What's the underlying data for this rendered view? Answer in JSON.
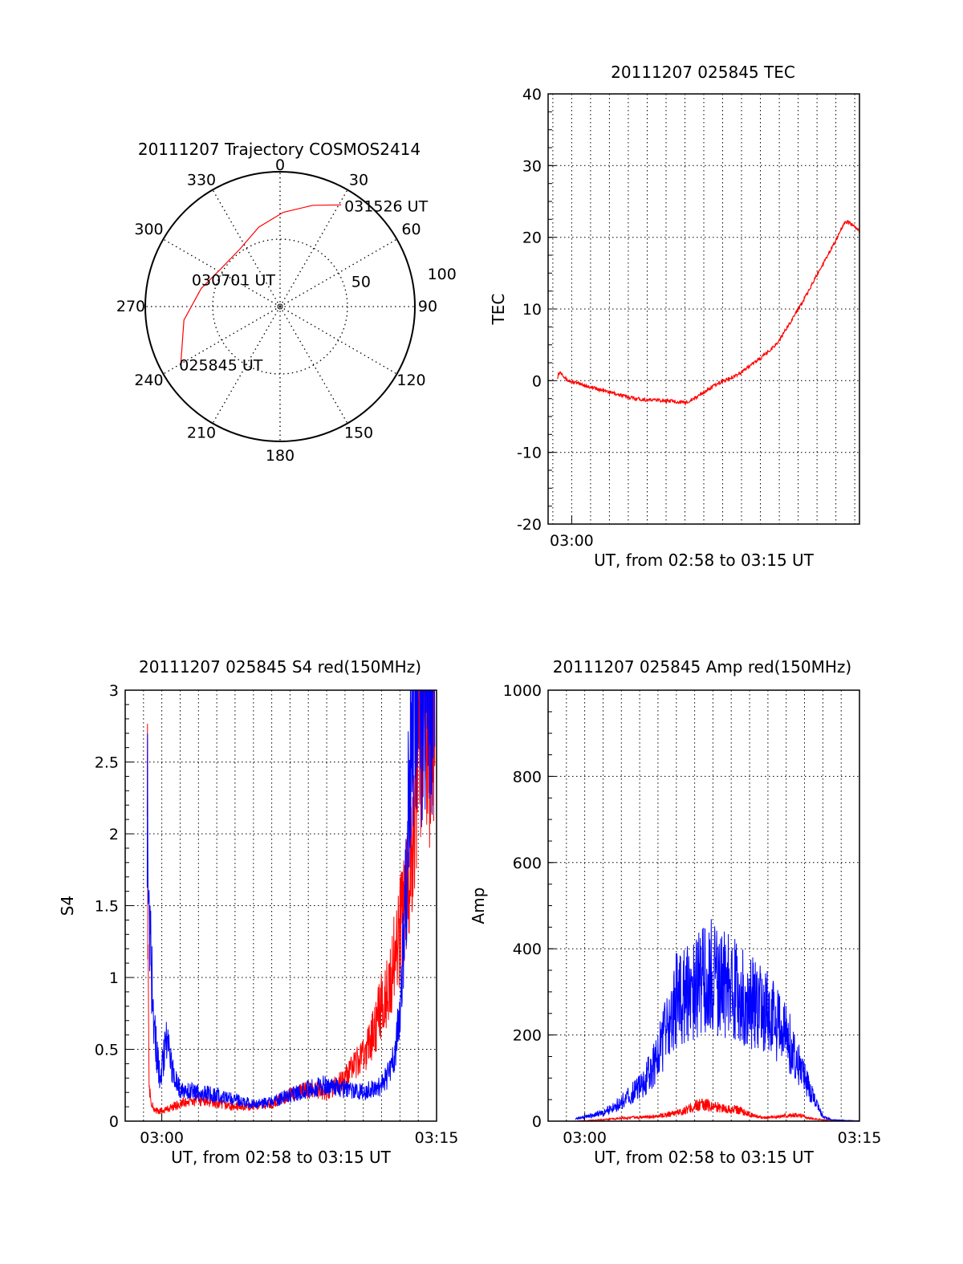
{
  "colors": {
    "series_a": "#ff0000",
    "series_b": "#0000ff",
    "grid": "#000000"
  },
  "chart_data": [
    {
      "type": "polar",
      "title": "20111207 Trajectory COSMOS2414",
      "azimuth_labels": [
        "0",
        "30",
        "60",
        "90",
        "120",
        "150",
        "180",
        "210",
        "240",
        "270",
        "300",
        "330"
      ],
      "ring_labels": [
        "50",
        "100"
      ],
      "grid": true,
      "annotations": [
        "031526 UT",
        "030701 UT",
        "025845 UT"
      ],
      "series": [
        {
          "color": "#ff0000",
          "points": [
            {
              "az": 240,
              "r": 85
            },
            {
              "az": 262,
              "r": 72
            },
            {
              "az": 283,
              "r": 60
            },
            {
              "az": 303,
              "r": 52
            },
            {
              "az": 325,
              "r": 52
            },
            {
              "az": 345,
              "r": 61
            },
            {
              "az": 2,
              "r": 70
            },
            {
              "az": 18,
              "r": 79
            },
            {
              "az": 31,
              "r": 88
            }
          ]
        }
      ]
    },
    {
      "type": "line",
      "title": "20111207 025845 TEC",
      "xlabel": "UT, from 02:58 to 03:15 UT",
      "ylabel": "TEC",
      "xlim": [
        -1.25,
        15.25
      ],
      "ylim": [
        -20,
        40
      ],
      "y_ticks": [
        "-20",
        "-10",
        "0",
        "10",
        "20",
        "30",
        "40"
      ],
      "x_ticks": [
        {
          "value": 0,
          "label": "03:00"
        }
      ],
      "grid": true,
      "series": [
        {
          "color": "#ff0000",
          "x": [
            -0.75,
            -0.7,
            -0.6,
            -0.5,
            -0.4,
            -0.3,
            -0.2,
            0.5,
            1,
            2,
            3,
            4,
            4.5,
            5,
            5.5,
            6,
            6.5,
            7,
            7.5,
            8,
            8.5,
            9,
            9.5,
            10,
            10.5,
            11,
            11.5,
            12,
            12.5,
            13,
            13.5,
            14,
            14.5,
            15,
            15.25
          ],
          "y": [
            0.5,
            1,
            1.2,
            1.0,
            0.6,
            0.2,
            0,
            -0.5,
            -0.9,
            -1.6,
            -2.3,
            -2.7,
            -2.7,
            -2.8,
            -2.9,
            -3.1,
            -2.5,
            -1.6,
            -0.8,
            -0.1,
            0.5,
            1.2,
            2.2,
            3.1,
            4.2,
            5.6,
            7.8,
            10.0,
            12.2,
            14.8,
            17.2,
            19.6,
            22.3,
            21.5,
            20.8
          ]
        }
      ]
    },
    {
      "type": "line",
      "title": "20111207 025845 S4 red(150MHz)",
      "xlabel": "UT, from 02:58 to 03:15 UT",
      "ylabel": "S4",
      "xlim": [
        -2,
        15
      ],
      "ylim": [
        0,
        3
      ],
      "y_ticks": [
        "0",
        "0.5",
        "1",
        "1.5",
        "2",
        "2.5",
        "3"
      ],
      "x_ticks": [
        {
          "value": 0,
          "label": "03:00"
        },
        {
          "value": 15,
          "label": "03:15"
        }
      ],
      "grid": true,
      "series": [
        {
          "color": "#ff0000",
          "x": [
            -0.8,
            -0.75,
            -0.7,
            -0.6,
            -0.4,
            -0.2,
            0,
            1,
            2,
            3,
            4,
            5,
            6,
            7,
            8,
            9,
            10,
            11,
            11.5,
            12,
            12.5,
            13,
            13.5,
            14,
            14.3,
            14.6,
            14.9
          ],
          "y": [
            3.0,
            1.0,
            0.3,
            0.12,
            0.08,
            0.07,
            0.07,
            0.12,
            0.15,
            0.12,
            0.1,
            0.1,
            0.12,
            0.18,
            0.22,
            0.2,
            0.3,
            0.45,
            0.6,
            0.8,
            1.0,
            1.3,
            1.8,
            2.5,
            3.0,
            2.6,
            3.0
          ]
        },
        {
          "color": "#0000ff",
          "x": [
            -0.8,
            -0.75,
            -0.7,
            -0.5,
            -0.3,
            -0.1,
            0.3,
            0.5,
            0.7,
            1,
            2,
            3,
            4,
            5,
            6,
            7,
            8,
            9,
            10,
            11,
            12,
            12.5,
            13,
            13.3,
            13.5,
            13.8,
            14,
            14.3,
            14.6,
            14.9
          ],
          "y": [
            2.3,
            1.9,
            1.5,
            0.9,
            0.5,
            0.3,
            0.6,
            0.4,
            0.3,
            0.22,
            0.2,
            0.18,
            0.15,
            0.12,
            0.13,
            0.18,
            0.22,
            0.25,
            0.22,
            0.2,
            0.25,
            0.35,
            0.7,
            1.5,
            2.4,
            3.0,
            2.8,
            3.0,
            3.0,
            3.0
          ]
        }
      ]
    },
    {
      "type": "line",
      "title": "20111207 025845 Amp red(150MHz)",
      "xlabel": "UT, from 02:58 to 03:15 UT",
      "ylabel": "Amp",
      "xlim": [
        -2,
        15
      ],
      "ylim": [
        0,
        1000
      ],
      "y_ticks": [
        "0",
        "200",
        "400",
        "600",
        "800",
        "1000"
      ],
      "x_ticks": [
        {
          "value": 0,
          "label": "03:00"
        },
        {
          "value": 15,
          "label": "03:15"
        }
      ],
      "grid": true,
      "series": [
        {
          "color": "#ff0000",
          "x": [
            -0.4,
            0.5,
            1.5,
            2.5,
            3.5,
            4.5,
            5.5,
            6,
            6.5,
            7,
            7.5,
            8,
            8.5,
            9,
            9.5,
            10,
            10.5,
            11,
            11.5,
            12,
            12.5,
            13,
            13.5,
            14,
            15
          ],
          "y": [
            0,
            2,
            5,
            8,
            10,
            15,
            25,
            35,
            38,
            35,
            30,
            28,
            25,
            15,
            10,
            8,
            10,
            12,
            15,
            10,
            5,
            3,
            2,
            0,
            0
          ]
        },
        {
          "color": "#0000ff",
          "x": [
            -0.5,
            0,
            0.5,
            1,
            1.5,
            2,
            2.5,
            3,
            3.5,
            4,
            4.5,
            5,
            5.5,
            6,
            6.5,
            7,
            7.5,
            8,
            8.5,
            9,
            9.5,
            10,
            10.5,
            11,
            11.5,
            12,
            12.5,
            13,
            13.5,
            14,
            15
          ],
          "y": [
            5,
            10,
            15,
            20,
            30,
            45,
            60,
            80,
            110,
            150,
            220,
            280,
            300,
            310,
            330,
            340,
            320,
            310,
            300,
            280,
            260,
            250,
            230,
            200,
            150,
            100,
            50,
            10,
            3,
            2,
            0
          ]
        }
      ]
    }
  ]
}
